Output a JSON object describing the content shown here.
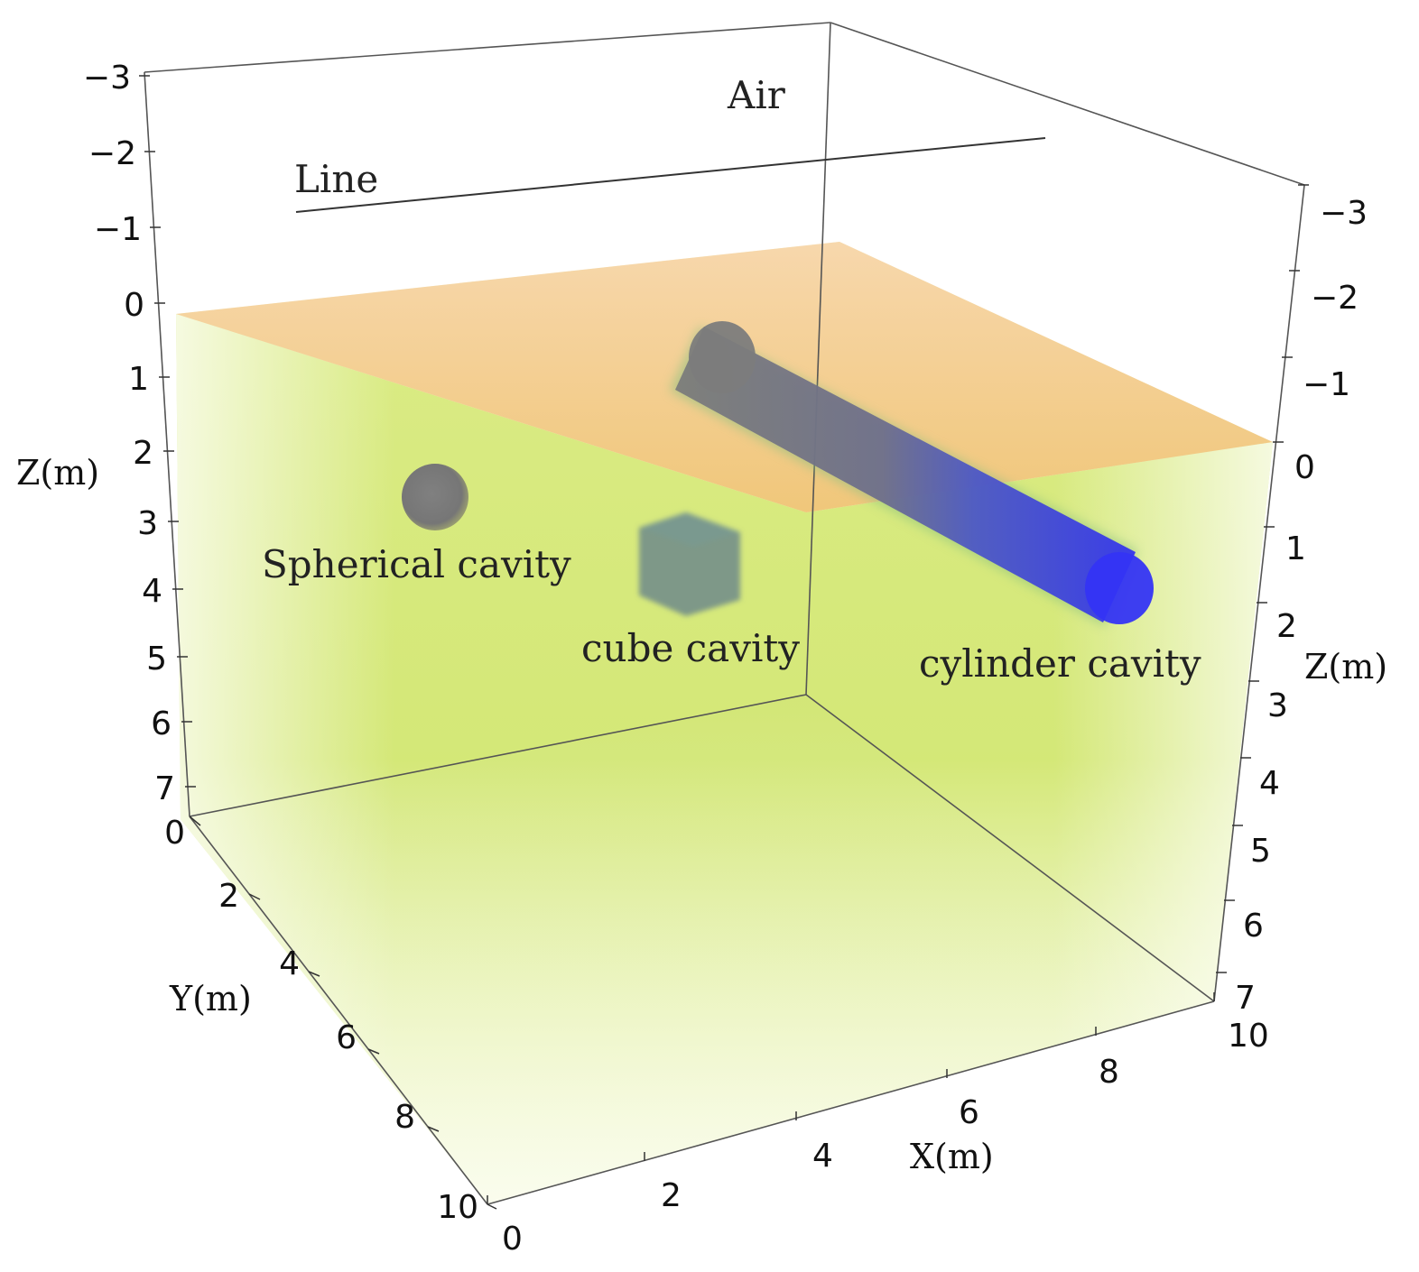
{
  "labels": {
    "air": "Air",
    "line": "Line",
    "spherical": "Spherical cavity",
    "cube": "cube cavity",
    "cylinder": "cylinder cavity"
  },
  "axes": {
    "z_left": {
      "title": "Z(m)",
      "ticks": [
        "-3",
        "-2",
        "-1",
        "0",
        "1",
        "2",
        "3",
        "4",
        "5",
        "6",
        "7"
      ]
    },
    "z_right": {
      "title": "Z(m)",
      "ticks": [
        "-3",
        "-2",
        "-1",
        "0",
        "1",
        "2",
        "3",
        "4",
        "5",
        "6",
        "7"
      ]
    },
    "y": {
      "title": "Y(m)",
      "ticks": [
        "0",
        "2",
        "4",
        "6",
        "8",
        "10"
      ]
    },
    "x": {
      "title": "X(m)",
      "ticks": [
        "0",
        "2",
        "4",
        "6",
        "8",
        "10"
      ]
    }
  },
  "colors": {
    "air": "#f6c48a",
    "soil": "#c8e050",
    "cavity_gray": "#7a7a7a",
    "cylinder_blue": "#3a3aee"
  }
}
